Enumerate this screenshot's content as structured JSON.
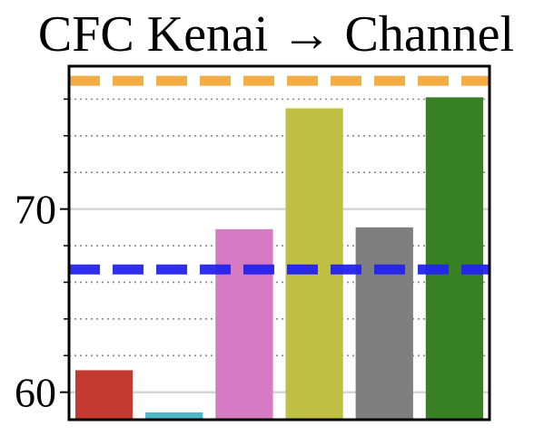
{
  "chart_data": {
    "type": "bar",
    "title": "CFC Kenai → Channel",
    "xlabel": "",
    "ylabel": "",
    "ylim": [
      58.5,
      77.8
    ],
    "y_major_ticks": [
      60,
      70
    ],
    "y_major_tick_labels": [
      "60",
      "70"
    ],
    "y_minor_ticks": [
      62,
      64,
      66,
      68,
      72,
      74,
      76
    ],
    "grid": "horizontal (solid at major ticks, dotted at minor ticks)",
    "legend": "none",
    "bars": [
      {
        "value": 61.2,
        "color": "#c43a30"
      },
      {
        "value": 58.9,
        "color": "#4fb7c9"
      },
      {
        "value": 68.9,
        "color": "#d57bc3"
      },
      {
        "value": 75.5,
        "color": "#bfbf44"
      },
      {
        "value": 69.0,
        "color": "#7f7f7f"
      },
      {
        "value": 76.1,
        "color": "#378024"
      }
    ],
    "reference_lines": [
      {
        "value": 77.0,
        "color": "#f2a93b",
        "style": "dashed"
      },
      {
        "value": 66.7,
        "color": "#2323ee",
        "style": "dashed"
      }
    ]
  }
}
